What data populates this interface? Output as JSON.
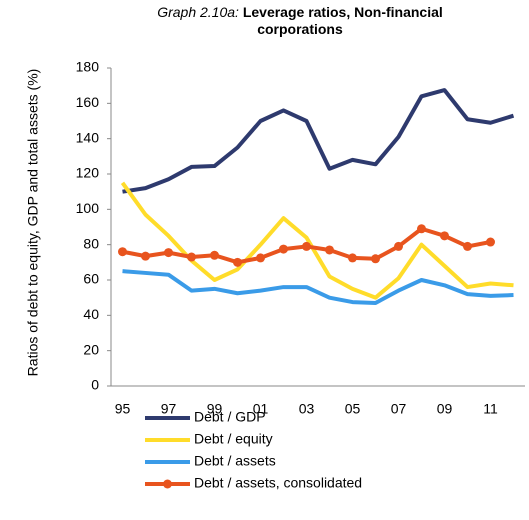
{
  "chart_data": {
    "type": "line",
    "title_label": "Graph 2.10a:",
    "title": "Leverage ratios, Non-financial corporations",
    "ylabel": "Ratios of debt to equity, GDP and total assets (%)",
    "categories": [
      "95",
      null,
      "97",
      null,
      "99",
      null,
      "01",
      null,
      "03",
      null,
      "05",
      null,
      "07",
      null,
      "09",
      null,
      "11",
      null
    ],
    "ylim": [
      0,
      180
    ],
    "yticks": [
      0,
      20,
      40,
      60,
      80,
      100,
      120,
      140,
      160,
      180
    ],
    "grid": false,
    "legend": "bottom",
    "series": [
      {
        "name": "Debt / GDP",
        "color": "#2e3a6e",
        "markers": false,
        "values": [
          110,
          112,
          117,
          124,
          124.5,
          135,
          150,
          156,
          150,
          123,
          128,
          125.5,
          141,
          164,
          167.5,
          151,
          149,
          153
        ]
      },
      {
        "name": "Debt / equity",
        "color": "#ffdc2a",
        "markers": false,
        "values": [
          115,
          97,
          85,
          71,
          60,
          66,
          80,
          95,
          84,
          62,
          55,
          50,
          61,
          80,
          68,
          56,
          58,
          57
        ]
      },
      {
        "name": "Debt / assets",
        "color": "#3a9be8",
        "markers": false,
        "values": [
          65,
          64,
          63,
          54,
          55,
          52.5,
          54,
          56,
          56,
          50,
          47.5,
          47,
          54,
          60,
          57,
          52,
          51,
          51.5
        ]
      },
      {
        "name": "Debt / assets, consolidated",
        "color": "#e8541e",
        "markers": true,
        "values": [
          76,
          73.5,
          75.5,
          73,
          74,
          70,
          72.5,
          77.5,
          79,
          77,
          72.5,
          72,
          79,
          89,
          85,
          79,
          81.5,
          null
        ]
      }
    ]
  }
}
